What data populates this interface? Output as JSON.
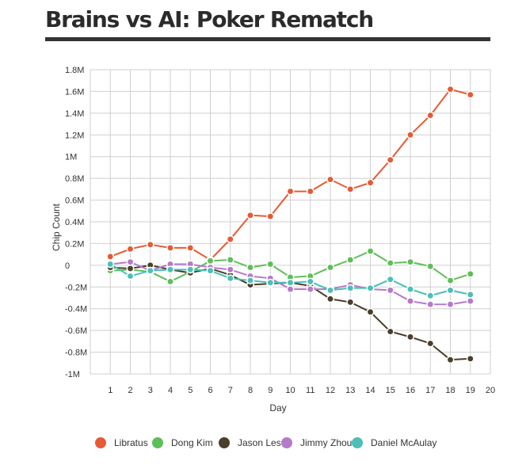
{
  "page": {
    "title": "Brains vs AI: Poker Rematch"
  },
  "chart_data": {
    "type": "line",
    "xlabel": "Day",
    "ylabel": "Chip Count",
    "xlim": [
      0,
      20
    ],
    "ylim": [
      -1000000,
      1800000
    ],
    "x_ticks": [
      1,
      2,
      3,
      4,
      5,
      6,
      7,
      8,
      9,
      10,
      11,
      12,
      13,
      14,
      15,
      16,
      17,
      18,
      19,
      20
    ],
    "y_ticks": [
      {
        "value": 1800000,
        "label": "1.8M"
      },
      {
        "value": 1600000,
        "label": "1.6M"
      },
      {
        "value": 1400000,
        "label": "1.4M"
      },
      {
        "value": 1200000,
        "label": "1.2M"
      },
      {
        "value": 1000000,
        "label": "1M"
      },
      {
        "value": 800000,
        "label": "0.8M"
      },
      {
        "value": 600000,
        "label": "0.6M"
      },
      {
        "value": 400000,
        "label": "0.4M"
      },
      {
        "value": 200000,
        "label": "0.2M"
      },
      {
        "value": 0,
        "label": "0"
      },
      {
        "value": -200000,
        "label": "-0.2M"
      },
      {
        "value": -400000,
        "label": "-0.4M"
      },
      {
        "value": -600000,
        "label": "-0.6M"
      },
      {
        "value": -800000,
        "label": "-0.8M"
      },
      {
        "value": -1000000,
        "label": "-1M"
      }
    ],
    "grid": true,
    "legend_position": "bottom",
    "x": [
      1,
      2,
      3,
      4,
      5,
      6,
      7,
      8,
      9,
      10,
      11,
      12,
      13,
      14,
      15,
      16,
      17,
      18,
      19
    ],
    "series": [
      {
        "name": "Libratus",
        "color": "#e65a36",
        "values": [
          80000,
          150000,
          190000,
          160000,
          160000,
          50000,
          240000,
          460000,
          450000,
          680000,
          680000,
          790000,
          700000,
          760000,
          970000,
          1200000,
          1380000,
          1620000,
          1570000
        ]
      },
      {
        "name": "Dong Kim",
        "color": "#5ebf58",
        "values": [
          -50000,
          -40000,
          -60000,
          -150000,
          -60000,
          40000,
          50000,
          -20000,
          10000,
          -110000,
          -100000,
          -20000,
          50000,
          130000,
          20000,
          30000,
          -10000,
          -140000,
          -80000
        ]
      },
      {
        "name": "Jason Les",
        "color": "#4a3e2c",
        "values": [
          -20000,
          -30000,
          0,
          -40000,
          -70000,
          -30000,
          -90000,
          -180000,
          -170000,
          -160000,
          -190000,
          -310000,
          -340000,
          -430000,
          -610000,
          -660000,
          -720000,
          -870000,
          -860000
        ]
      },
      {
        "name": "Jimmy Zhou",
        "color": "#b57ac9",
        "values": [
          10000,
          30000,
          -50000,
          10000,
          10000,
          -20000,
          -40000,
          -100000,
          -120000,
          -220000,
          -220000,
          -220000,
          -180000,
          -220000,
          -230000,
          -330000,
          -360000,
          -360000,
          -330000
        ]
      },
      {
        "name": "Daniel McAulay",
        "color": "#4cbfb6",
        "values": [
          10000,
          -100000,
          -50000,
          -40000,
          -40000,
          -50000,
          -120000,
          -140000,
          -160000,
          -160000,
          -150000,
          -230000,
          -210000,
          -210000,
          -130000,
          -220000,
          -280000,
          -230000,
          -270000
        ]
      }
    ]
  }
}
